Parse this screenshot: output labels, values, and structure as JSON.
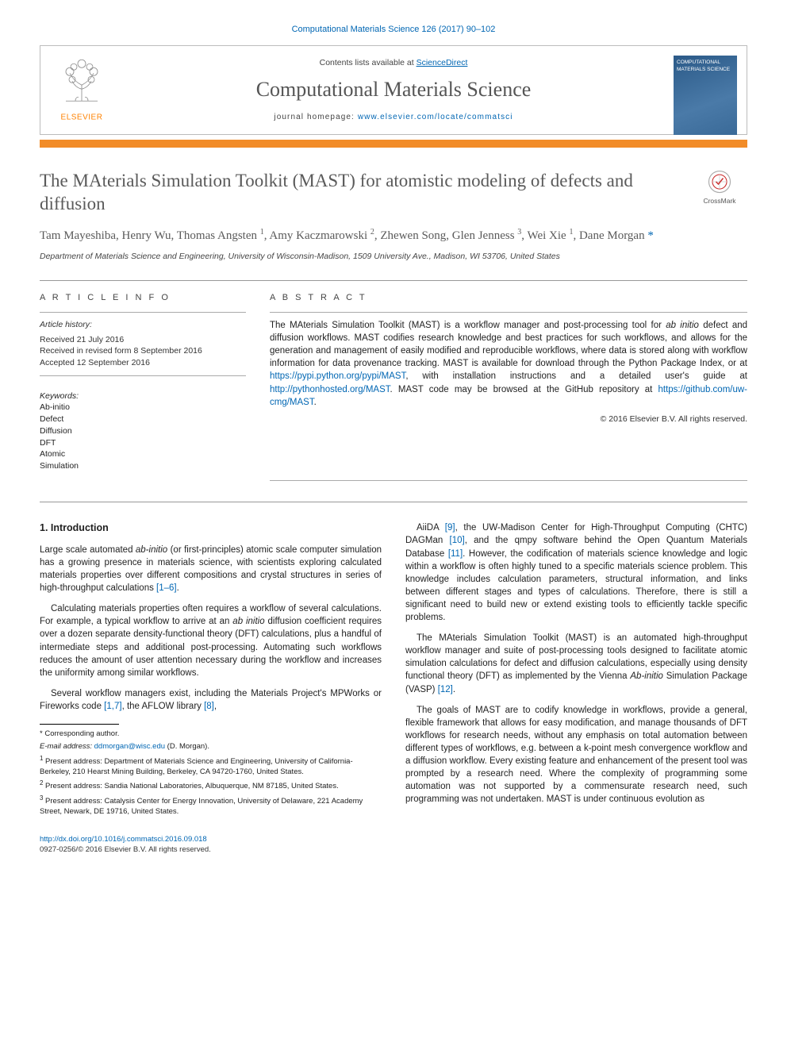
{
  "header": {
    "journal_ref": "Computational Materials Science 126 (2017) 90–102",
    "contents_line_pre": "Contents lists available at ",
    "contents_link": "ScienceDirect",
    "journal_title": "Computational Materials Science",
    "homepage_pre": "journal homepage: ",
    "homepage_url": "www.elsevier.com/locate/commatsci",
    "publisher_name": "ELSEVIER",
    "cover_text": "COMPUTATIONAL MATERIALS SCIENCE"
  },
  "crossmark": {
    "label": "CrossMark"
  },
  "title": "The MAterials Simulation Toolkit (MAST) for atomistic modeling of defects and diffusion",
  "authors_html": "Tam Mayeshiba, Henry Wu, Thomas Angsten <sup>1</sup>, Amy Kaczmarowski <sup>2</sup>, Zhewen Song, Glen Jenness <sup>3</sup>, Wei Xie <sup>1</sup>, Dane Morgan <span class='corr'>*</span>",
  "affiliation": "Department of Materials Science and Engineering, University of Wisconsin-Madison, 1509 University Ave., Madison, WI 53706, United States",
  "article_info": {
    "head": "A R T I C L E   I N F O",
    "hist_label": "Article history:",
    "received": "Received 21 July 2016",
    "revised": "Received in revised form 8 September 2016",
    "accepted": "Accepted 12 September 2016",
    "kw_label": "Keywords:",
    "keywords": [
      "Ab-initio",
      "Defect",
      "Diffusion",
      "DFT",
      "Atomic",
      "Simulation"
    ]
  },
  "abstract": {
    "head": "A B S T R A C T",
    "text_pre": "The MAterials Simulation Toolkit (MAST) is a workflow manager and post-processing tool for ",
    "ital": "ab initio",
    "text_mid": " defect and diffusion workflows. MAST codifies research knowledge and best practices for such workflows, and allows for the generation and management of easily modified and reproducible workflows, where data is stored along with workflow information for data provenance tracking. MAST is available for download through the Python Package Index, or at ",
    "link1": "https://pypi.python.org/pypi/MAST",
    "text_mid2": ", with installation instructions and a detailed user's guide at ",
    "link2": "http://pythonhosted.org/MAST",
    "text_mid3": ". MAST code may be browsed at the GitHub repository at ",
    "link3": "https://github.com/uw-cmg/MAST",
    "text_end": ".",
    "copyright": "© 2016 Elsevier B.V. All rights reserved."
  },
  "body": {
    "sec1_head": "1. Introduction",
    "left": [
      "Large scale automated ab-initio (or first-principles) atomic scale computer simulation has a growing presence in materials science, with scientists exploring calculated materials properties over different compositions and crystal structures in series of high-throughput calculations [1–6].",
      "Calculating materials properties often requires a workflow of several calculations. For example, a typical workflow to arrive at an ab initio diffusion coefficient requires over a dozen separate density-functional theory (DFT) calculations, plus a handful of intermediate steps and additional post-processing. Automating such workflows reduces the amount of user attention necessary during the workflow and increases the uniformity among similar workflows.",
      "Several workflow managers exist, including the Materials Project's MPWorks or Fireworks code [1,7], the AFLOW library [8],"
    ],
    "right": [
      "AiiDA [9], the UW-Madison Center for High-Throughput Computing (CHTC) DAGMan [10], and the qmpy software behind the Open Quantum Materials Database [11]. However, the codification of materials science knowledge and logic within a workflow is often highly tuned to a specific materials science problem. This knowledge includes calculation parameters, structural information, and links between different stages and types of calculations. Therefore, there is still a significant need to build new or extend existing tools to efficiently tackle specific problems.",
      "The MAterials Simulation Toolkit (MAST) is an automated high-throughput workflow manager and suite of post-processing tools designed to facilitate atomic simulation calculations for defect and diffusion calculations, especially using density functional theory (DFT) as implemented by the Vienna Ab-initio Simulation Package (VASP) [12].",
      "The goals of MAST are to codify knowledge in workflows, provide a general, flexible framework that allows for easy modification, and manage thousands of DFT workflows for research needs, without any emphasis on total automation between different types of workflows, e.g. between a k-point mesh convergence workflow and a diffusion workflow. Every existing feature and enhancement of the present tool was prompted by a research need. Where the complexity of programming some automation was not supported by a commensurate research need, such programming was not undertaken. MAST is under continuous evolution as"
    ]
  },
  "footnotes": {
    "corr": "* Corresponding author.",
    "email_label": "E-mail address: ",
    "email": "ddmorgan@wisc.edu",
    "email_who": " (D. Morgan).",
    "fn1": "Present address: Department of Materials Science and Engineering, University of California-Berkeley, 210 Hearst Mining Building, Berkeley, CA 94720-1760, United States.",
    "fn2": "Present address: Sandia National Laboratories, Albuquerque, NM 87185, United States.",
    "fn3": "Present address: Catalysis Center for Energy Innovation, University of Delaware, 221 Academy Street, Newark, DE 19716, United States."
  },
  "footer": {
    "doi": "http://dx.doi.org/10.1016/j.commatsci.2016.09.018",
    "line2": "0927-0256/© 2016 Elsevier B.V. All rights reserved."
  },
  "colors": {
    "link": "#0066b3",
    "orange_bar": "#f28c28",
    "elsevier_orange": "#ff8200",
    "title_gray": "#5a5a5a",
    "text": "#222222"
  }
}
